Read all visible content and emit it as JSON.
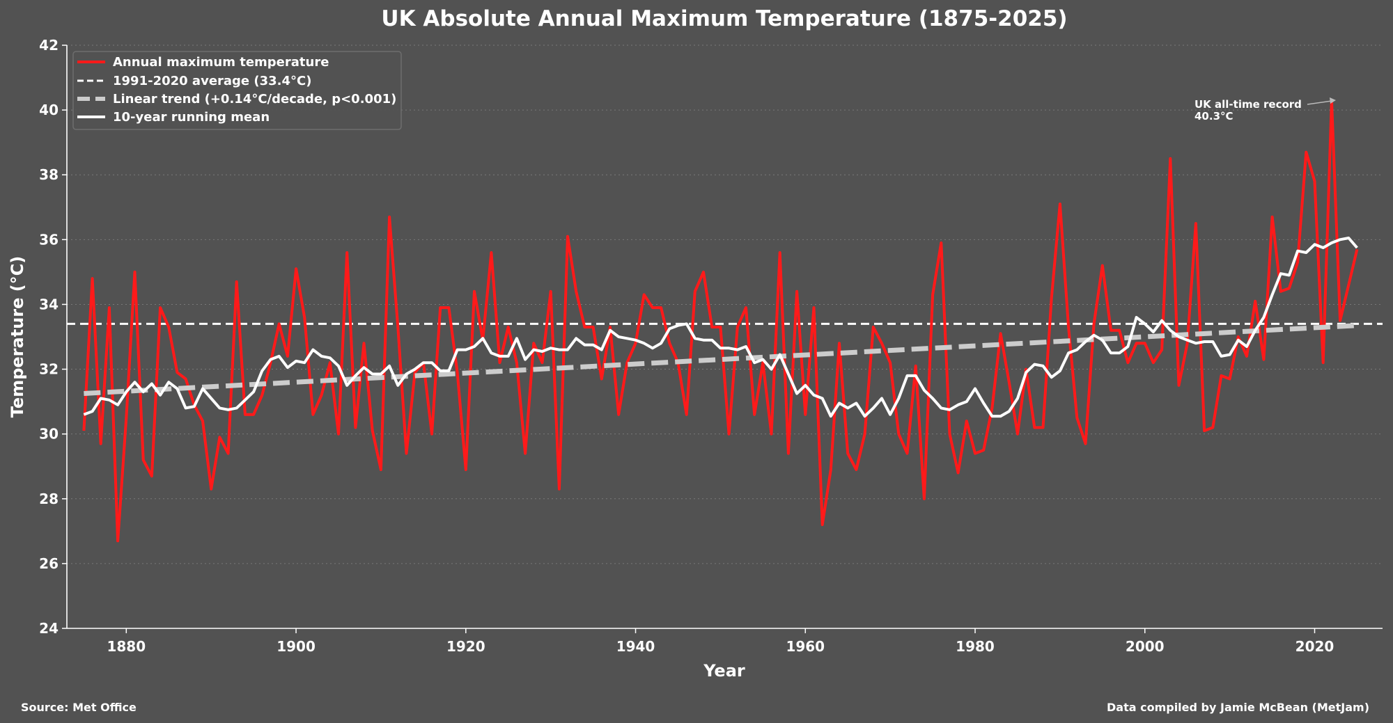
{
  "chart_data": {
    "type": "line",
    "title": "UK Absolute Annual Maximum Temperature (1875-2025)",
    "xlabel": "Year",
    "ylabel": "Temperature (°C)",
    "xlim": [
      1873,
      2028
    ],
    "ylim": [
      24,
      42
    ],
    "xticks": [
      1880,
      1900,
      1920,
      1940,
      1960,
      1980,
      2000,
      2020
    ],
    "yticks": [
      24,
      26,
      28,
      30,
      32,
      34,
      36,
      38,
      40,
      42
    ],
    "grid": "horizontal dotted",
    "legend_position": "top-left",
    "x_start": 1875,
    "series": [
      {
        "name": "Annual maximum temperature",
        "color": "#ff1a1a",
        "style": "solid",
        "values": [
          30.1,
          34.8,
          29.7,
          33.9,
          26.7,
          30.5,
          35.0,
          29.2,
          28.7,
          33.9,
          33.3,
          31.9,
          31.7,
          30.9,
          30.4,
          28.3,
          29.9,
          29.4,
          34.7,
          30.6,
          30.6,
          31.2,
          32.2,
          33.4,
          32.4,
          35.1,
          33.6,
          30.6,
          31.2,
          32.2,
          30.0,
          35.6,
          30.2,
          32.8,
          30.1,
          28.9,
          36.7,
          33.3,
          29.4,
          31.9,
          32.2,
          30.0,
          33.9,
          33.9,
          31.9,
          28.9,
          34.4,
          32.9,
          35.6,
          32.2,
          33.3,
          32.2,
          29.4,
          32.8,
          32.2,
          34.4,
          28.3,
          36.1,
          34.4,
          33.3,
          33.3,
          31.7,
          33.3,
          30.6,
          32.2,
          32.8,
          34.3,
          33.9,
          33.9,
          32.8,
          32.2,
          30.6,
          34.4,
          35.0,
          33.3,
          33.3,
          30.0,
          33.3,
          33.9,
          30.6,
          32.2,
          30.0,
          35.6,
          29.4,
          34.4,
          30.6,
          33.9,
          27.2,
          28.9,
          32.8,
          29.4,
          28.9,
          30.0,
          33.3,
          32.8,
          32.2,
          30.0,
          29.4,
          32.1,
          28.0,
          34.3,
          35.9,
          30.0,
          28.8,
          30.4,
          29.4,
          29.5,
          30.8,
          33.1,
          31.6,
          30.0,
          32.0,
          30.2,
          30.2,
          34.2,
          37.1,
          33.3,
          30.5,
          29.7,
          33.4,
          35.2,
          33.2,
          33.2,
          32.2,
          32.8,
          32.8,
          32.2,
          32.6,
          38.5,
          31.5,
          32.8,
          36.5,
          30.1,
          30.2,
          31.8,
          31.7,
          33.0,
          32.4,
          34.1,
          32.3,
          36.7,
          34.4,
          34.5,
          35.3,
          38.7,
          37.8,
          32.2,
          40.3,
          33.5,
          34.6,
          35.7
        ]
      },
      {
        "name": "10-year running mean",
        "color": "#ffffff",
        "style": "solid",
        "values": [
          30.6,
          30.7,
          31.1,
          31.05,
          30.9,
          31.3,
          31.6,
          31.3,
          31.55,
          31.2,
          31.6,
          31.4,
          30.8,
          30.85,
          31.4,
          31.1,
          30.8,
          30.75,
          30.8,
          31.05,
          31.3,
          31.95,
          32.3,
          32.4,
          32.05,
          32.25,
          32.2,
          32.6,
          32.4,
          32.35,
          32.1,
          31.5,
          31.8,
          32.05,
          31.85,
          31.85,
          32.1,
          31.5,
          31.85,
          32.0,
          32.2,
          32.2,
          31.95,
          31.95,
          32.6,
          32.6,
          32.7,
          32.95,
          32.5,
          32.4,
          32.4,
          32.95,
          32.3,
          32.6,
          32.55,
          32.65,
          32.6,
          32.6,
          32.95,
          32.75,
          32.75,
          32.6,
          33.2,
          33.0,
          32.95,
          32.9,
          32.8,
          32.65,
          32.8,
          33.25,
          33.35,
          33.4,
          32.95,
          32.9,
          32.9,
          32.65,
          32.65,
          32.6,
          32.7,
          32.2,
          32.3,
          32.0,
          32.45,
          31.85,
          31.25,
          31.5,
          31.2,
          31.1,
          30.55,
          30.95,
          30.8,
          30.95,
          30.55,
          30.8,
          31.1,
          30.6,
          31.1,
          31.8,
          31.8,
          31.35,
          31.1,
          30.8,
          30.75,
          30.9,
          31.0,
          31.4,
          30.95,
          30.55,
          30.55,
          30.7,
          31.1,
          31.9,
          32.15,
          32.1,
          31.75,
          31.95,
          32.5,
          32.6,
          32.85,
          33.05,
          32.9,
          32.5,
          32.5,
          32.7,
          33.6,
          33.4,
          33.15,
          33.5,
          33.2,
          33.0,
          32.9,
          32.8,
          32.85,
          32.85,
          32.4,
          32.45,
          32.9,
          32.7,
          33.2,
          33.6,
          34.3,
          34.95,
          34.9,
          35.65,
          35.6,
          35.85,
          35.75,
          35.9,
          36.0,
          36.05,
          35.75
        ]
      },
      {
        "name": "Linear trend (+0.14°C/decade, p<0.001)",
        "color": "#cccccc",
        "style": "dashed",
        "start": [
          1875,
          31.25
        ],
        "end": [
          2025,
          33.35
        ]
      },
      {
        "name": "1991-2020 average (33.4°C)",
        "color": "#ffffff",
        "style": "dashed",
        "value": 33.4
      }
    ],
    "legend": [
      "Annual maximum temperature",
      "1991-2020 average (33.4°C)",
      "Linear trend (+0.14°C/decade, p<0.001)",
      "10-year running mean"
    ],
    "annotations": [
      {
        "text_line1": "UK all-time record",
        "text_line2": "40.3°C",
        "x": 2022,
        "y": 40.3
      }
    ],
    "footer_left": "Source: Met Office",
    "footer_right": "Data compiled by Jamie McBean (MetJam)"
  }
}
